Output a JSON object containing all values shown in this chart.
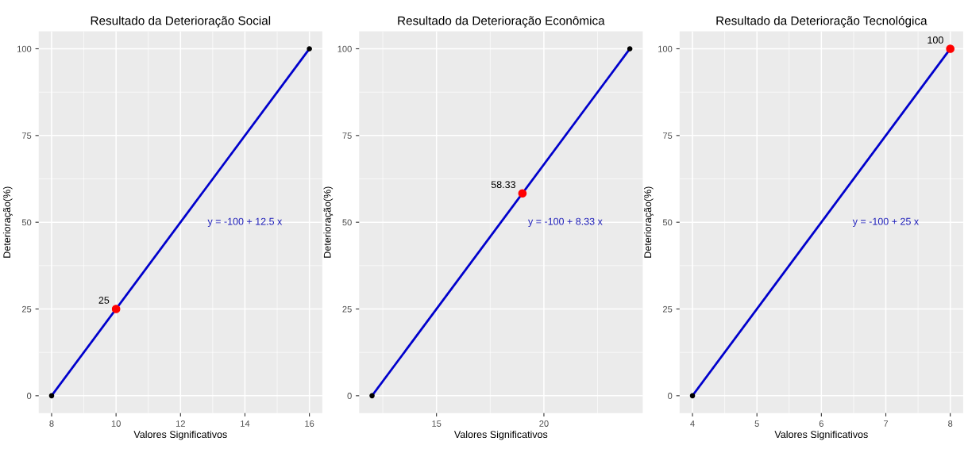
{
  "chart_data": [
    {
      "type": "line",
      "title": "Resultado da Deterioração Social",
      "xlabel": "Valores Significativos",
      "ylabel": "Deterioração(%)",
      "xlim": [
        7.6,
        16.4
      ],
      "xticks": [
        8,
        10,
        12,
        14,
        16
      ],
      "ylim": [
        -5,
        105
      ],
      "yticks": [
        0,
        25,
        50,
        75,
        100
      ],
      "grid": true,
      "series": [
        {
          "type": "line",
          "color": "#0000cc",
          "x": [
            8,
            16
          ],
          "values": [
            0,
            100
          ],
          "marker": "none"
        },
        {
          "type": "scatter",
          "color": "#000000",
          "x": [
            8,
            16
          ],
          "values": [
            0,
            100
          ],
          "marker": "circle"
        },
        {
          "type": "scatter",
          "color": "#ff0000",
          "x": [
            10
          ],
          "values": [
            25
          ],
          "marker": "circle",
          "value_labels": [
            "25"
          ]
        }
      ],
      "annotations": [
        "y = -100 + 12.5 x"
      ]
    },
    {
      "type": "line",
      "title": "Resultado da Deterioração Econômica",
      "xlabel": "Valores Significativos",
      "ylabel": "Deterioração(%)",
      "xlim": [
        11.4,
        24.6
      ],
      "xticks": [
        15,
        20
      ],
      "ylim": [
        -5,
        105
      ],
      "yticks": [
        0,
        25,
        50,
        75,
        100
      ],
      "grid": true,
      "series": [
        {
          "type": "line",
          "color": "#0000cc",
          "x": [
            12,
            24
          ],
          "values": [
            0,
            100
          ],
          "marker": "none"
        },
        {
          "type": "scatter",
          "color": "#000000",
          "x": [
            12,
            24
          ],
          "values": [
            0,
            100
          ],
          "marker": "circle"
        },
        {
          "type": "scatter",
          "color": "#ff0000",
          "x": [
            19
          ],
          "values": [
            58.33
          ],
          "marker": "circle",
          "value_labels": [
            "58.33"
          ]
        }
      ],
      "annotations": [
        "y = -100 + 8.33 x"
      ]
    },
    {
      "type": "line",
      "title": "Resultado da Deterioração Tecnológica",
      "xlabel": "Valores Significativos",
      "ylabel": "Deterioração(%)",
      "xlim": [
        3.8,
        8.2
      ],
      "xticks": [
        4,
        5,
        6,
        7,
        8
      ],
      "ylim": [
        -5,
        105
      ],
      "yticks": [
        0,
        25,
        50,
        75,
        100
      ],
      "grid": true,
      "series": [
        {
          "type": "line",
          "color": "#0000cc",
          "x": [
            4,
            8
          ],
          "values": [
            0,
            100
          ],
          "marker": "none"
        },
        {
          "type": "scatter",
          "color": "#000000",
          "x": [
            4
          ],
          "values": [
            0
          ],
          "marker": "circle"
        },
        {
          "type": "scatter",
          "color": "#ff0000",
          "x": [
            8
          ],
          "values": [
            100
          ],
          "marker": "circle",
          "value_labels": [
            "100"
          ]
        }
      ],
      "annotations": [
        "y = -100 + 25 x"
      ]
    }
  ]
}
